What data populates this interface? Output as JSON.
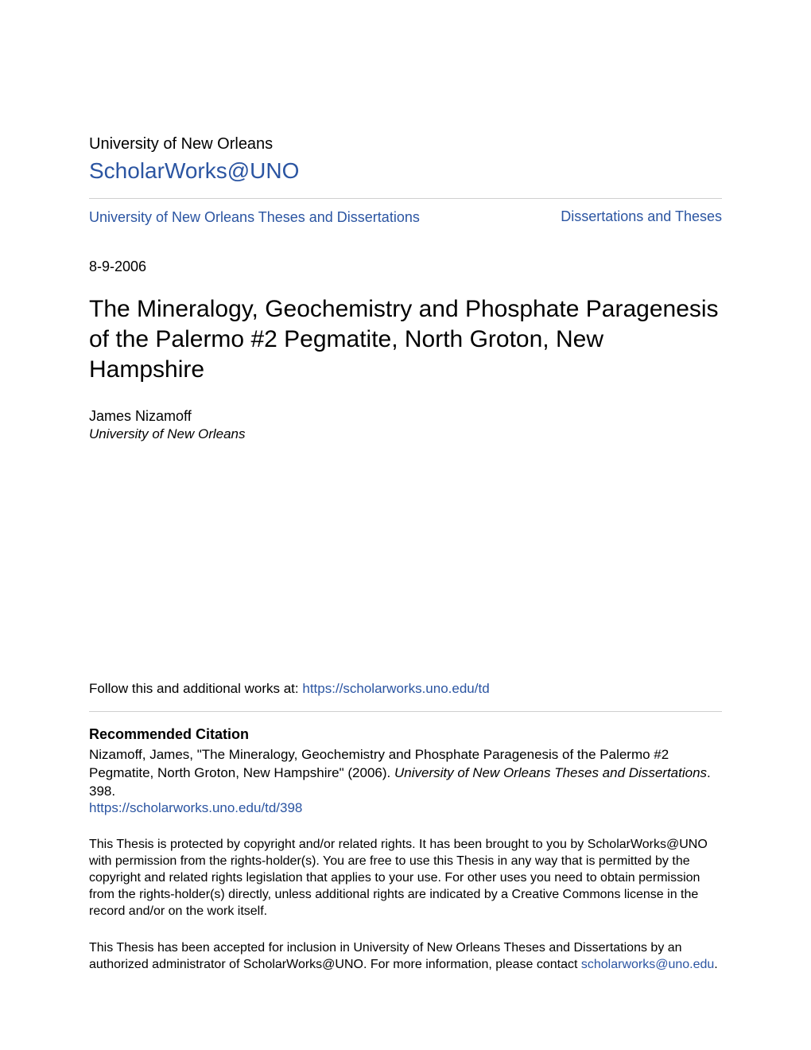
{
  "header": {
    "institution": "University of New Orleans",
    "repo_name": "ScholarWorks@UNO",
    "repo_url": "#"
  },
  "breadcrumb": {
    "left_label": "University of New Orleans Theses and Dissertations",
    "left_url": "#",
    "right_label": "Dissertations and Theses",
    "right_url": "#"
  },
  "meta": {
    "date": "8-9-2006"
  },
  "title": "The Mineralogy, Geochemistry and Phosphate Paragenesis of the Palermo #2 Pegmatite, North Groton, New Hampshire",
  "author": {
    "name": "James Nizamoff",
    "affiliation": "University of New Orleans"
  },
  "follow": {
    "prefix": "Follow this and additional works at: ",
    "link_text": "https://scholarworks.uno.edu/td",
    "link_url": "#"
  },
  "recommended": {
    "heading": "Recommended Citation",
    "text_before_ital": "Nizamoff, James, \"The Mineralogy, Geochemistry and Phosphate Paragenesis of the Palermo #2 Pegmatite, North Groton, New Hampshire\" (2006). ",
    "ital": "University of New Orleans Theses and Dissertations",
    "text_after_ital": ". 398.",
    "link_text": "https://scholarworks.uno.edu/td/398",
    "link_url": "#"
  },
  "copyright": {
    "para1": "This Thesis is protected by copyright and/or related rights. It has been brought to you by ScholarWorks@UNO with permission from the rights-holder(s). You are free to use this Thesis in any way that is permitted by the copyright and related rights legislation that applies to your use. For other uses you need to obtain permission from the rights-holder(s) directly, unless additional rights are indicated by a Creative Commons license in the record and/or on the work itself.",
    "para2_before": "This Thesis has been accepted for inclusion in University of New Orleans Theses and Dissertations by an authorized administrator of ScholarWorks@UNO. For more information, please contact ",
    "para2_link_text": "scholarworks@uno.edu",
    "para2_link_url": "#",
    "para2_after": "."
  },
  "colors": {
    "link": "#2b55a2",
    "rule": "#cfcfcf",
    "text": "#000000",
    "background": "#ffffff"
  },
  "typography": {
    "institution_fontsize": 20,
    "repo_fontsize": 28,
    "nav_fontsize": 18,
    "title_fontsize": 30,
    "body_fontsize": 17,
    "small_fontsize": 16
  }
}
